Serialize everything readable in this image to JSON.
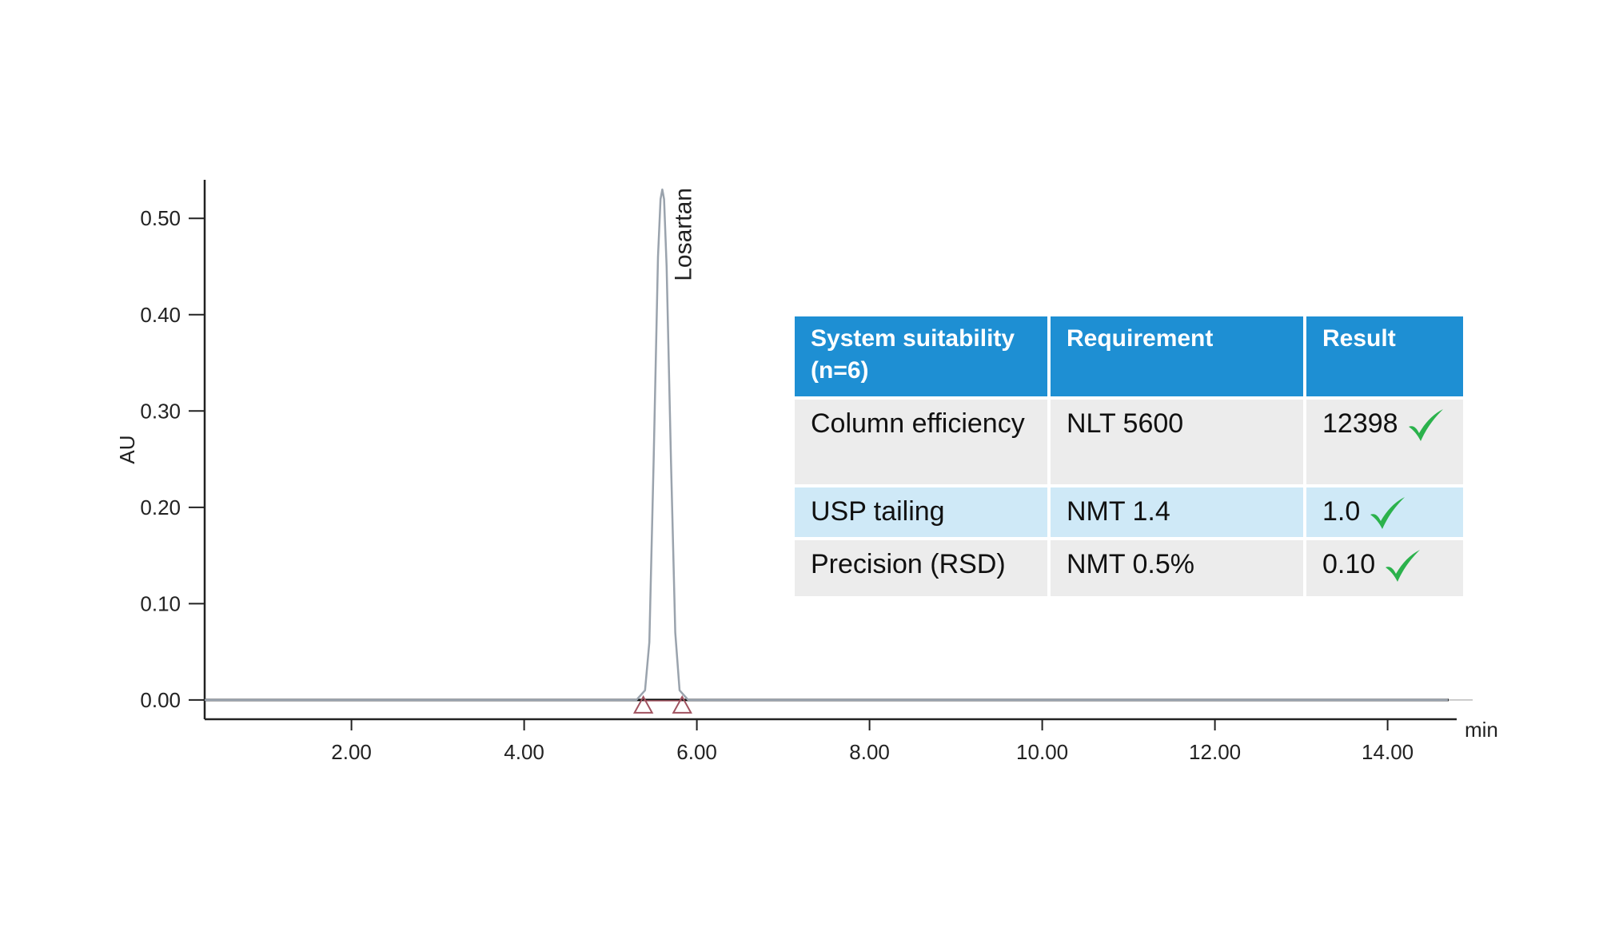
{
  "chart_data": {
    "type": "line",
    "xlabel": "min",
    "ylabel": "AU",
    "xlim": [
      0.3,
      14.8
    ],
    "ylim": [
      -0.02,
      0.54
    ],
    "x_ticks": [
      2.0,
      4.0,
      6.0,
      8.0,
      10.0,
      12.0,
      14.0
    ],
    "x_tick_labels": [
      "2.00",
      "4.00",
      "6.00",
      "8.00",
      "10.00",
      "12.00",
      "14.00"
    ],
    "y_ticks": [
      0.0,
      0.1,
      0.2,
      0.3,
      0.4,
      0.5
    ],
    "y_tick_labels": [
      "0.00",
      "0.10",
      "0.20",
      "0.30",
      "0.40",
      "0.50"
    ],
    "grid": false,
    "series": [
      {
        "color": "#9aa3ad",
        "x": [
          0.3,
          5.3,
          5.4,
          5.45,
          5.5,
          5.55,
          5.58,
          5.6,
          5.62,
          5.65,
          5.7,
          5.75,
          5.8,
          5.9,
          14.7
        ],
        "y": [
          0.0,
          0.0,
          0.01,
          0.06,
          0.25,
          0.46,
          0.52,
          0.53,
          0.52,
          0.45,
          0.25,
          0.07,
          0.01,
          0.0,
          0.0
        ]
      }
    ],
    "peaks": [
      {
        "label": "Losartan",
        "x": 5.6,
        "y": 0.53,
        "start": 5.38,
        "end": 5.83
      }
    ],
    "marker_color": "#a0525f"
  },
  "table": {
    "headers": [
      "System suitability (n=6)",
      "Requirement",
      "Result"
    ],
    "rows": [
      {
        "parameter": "Column efficiency",
        "requirement": "NLT 5600",
        "result": "12398"
      },
      {
        "parameter": "USP tailing",
        "requirement": "NMT 1.4",
        "result": "1.0"
      },
      {
        "parameter": "Precision (RSD)",
        "requirement": "NMT 0.5%",
        "result": "0.10"
      }
    ],
    "check_icon": "check-mark-icon",
    "check_color": "#2bb24c"
  }
}
